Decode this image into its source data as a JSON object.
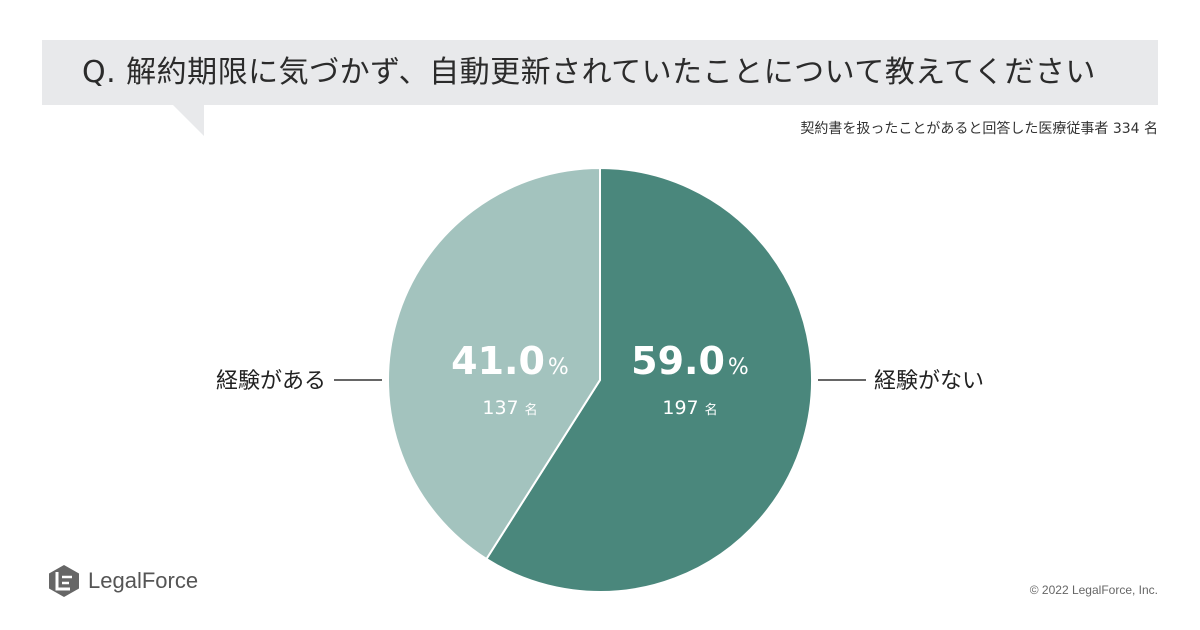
{
  "question": "Q. 解約期限に気づかず、自動更新されていたことについて教えてください",
  "subtitle": "契約書を扱ったことがあると回答した医療従事者 334 名",
  "chart_data": {
    "type": "pie",
    "title": "Q. 解約期限に気づかず、自動更新されていたことについて教えてください",
    "slices": [
      {
        "label": "経験がない",
        "percent": 59.0,
        "percent_text": "59.0",
        "count_text": "197",
        "color": "#4a877c"
      },
      {
        "label": "経験がある",
        "percent": 41.0,
        "percent_text": "41.0",
        "count_text": "137",
        "color": "#a3c3be"
      }
    ],
    "percent_sign": "%",
    "count_unit": "名",
    "start_angle": "12 o'clock, clockwise"
  },
  "colors": {
    "banner_bg": "#e8e9eb",
    "slice_border": "#ffffff",
    "logo_grey": "#666666"
  },
  "logo": {
    "name": "LegalForce",
    "icon": "legalforce-logo-icon"
  },
  "copyright": "© 2022 LegalForce, Inc."
}
